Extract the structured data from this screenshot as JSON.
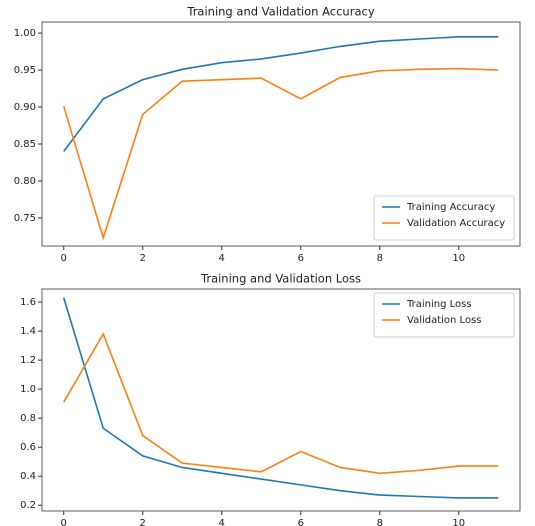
{
  "chart_data": [
    {
      "type": "line",
      "title": "Training and Validation Accuracy",
      "x": [
        0,
        1,
        2,
        3,
        4,
        5,
        6,
        7,
        8,
        9,
        10,
        11
      ],
      "series": [
        {
          "name": "Training Accuracy",
          "color": "#1f77b4",
          "values": [
            0.84,
            0.911,
            0.937,
            0.951,
            0.96,
            0.965,
            0.973,
            0.982,
            0.989,
            0.992,
            0.995,
            0.995
          ]
        },
        {
          "name": "Validation Accuracy",
          "color": "#ff7f0e",
          "values": [
            0.901,
            0.723,
            0.89,
            0.935,
            0.937,
            0.939,
            0.911,
            0.94,
            0.949,
            0.951,
            0.952,
            0.95
          ]
        }
      ],
      "xlim": [
        -0.55,
        11.55
      ],
      "xticks": [
        0,
        2,
        4,
        6,
        8,
        10
      ],
      "ylim": [
        0.712,
        1.015
      ],
      "yticks": [
        {
          "value": 0.75,
          "label": "0.75"
        },
        {
          "value": 0.8,
          "label": "0.80"
        },
        {
          "value": 0.85,
          "label": "0.85"
        },
        {
          "value": 0.9,
          "label": "0.90"
        },
        {
          "value": 0.95,
          "label": "0.95"
        },
        {
          "value": 1,
          "label": "1.00"
        }
      ],
      "legend": "lower right"
    },
    {
      "type": "line",
      "title": "Training and Validation Loss",
      "x": [
        0,
        1,
        2,
        3,
        4,
        5,
        6,
        7,
        8,
        9,
        10,
        11
      ],
      "series": [
        {
          "name": "Training Loss",
          "color": "#1f77b4",
          "values": [
            1.63,
            0.73,
            0.54,
            0.46,
            0.42,
            0.38,
            0.34,
            0.3,
            0.27,
            0.26,
            0.25,
            0.25
          ]
        },
        {
          "name": "Validation Loss",
          "color": "#ff7f0e",
          "values": [
            0.91,
            1.38,
            0.68,
            0.49,
            0.46,
            0.43,
            0.57,
            0.46,
            0.42,
            0.44,
            0.47,
            0.47
          ]
        }
      ],
      "xlim": [
        -0.55,
        11.55
      ],
      "xticks": [
        0,
        2,
        4,
        6,
        8,
        10
      ],
      "ylim": [
        0.16,
        1.69
      ],
      "yticks": [
        0.2,
        0.4,
        0.6,
        0.8,
        {
          "value": 1,
          "label": "1.0"
        },
        1.2,
        1.4,
        1.6
      ],
      "legend": "upper right"
    }
  ]
}
